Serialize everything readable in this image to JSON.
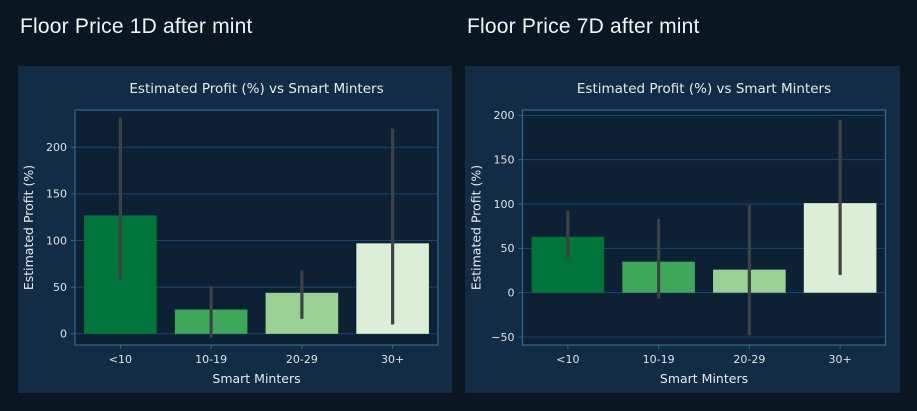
{
  "page": {
    "heading_left": "Floor Price 1D after mint",
    "heading_right": "Floor Price 7D after mint"
  },
  "colors": {
    "page_bg": "#0a1621",
    "figure_bg": "#112c44",
    "plot_bg": "#0c2134",
    "grid": "#1d4768",
    "spine": "#32678f",
    "tick_text": "#dce4ea",
    "title_text": "#e6ebef",
    "error_bar": "#3d4345",
    "heading_text": "#f1f5f8"
  },
  "chart_data": [
    {
      "type": "bar",
      "title": "Estimated Profit (%) vs Smart Minters",
      "xlabel": "Smart Minters",
      "ylabel": "Estimated Profit (%)",
      "categories": [
        "<10",
        "10-19",
        "20-29",
        "30+"
      ],
      "values": [
        127,
        26,
        44,
        97
      ],
      "error_low": [
        58,
        -4,
        16,
        10
      ],
      "error_high": [
        232,
        51,
        68,
        220
      ],
      "yticks": [
        0,
        50,
        100,
        150,
        200
      ],
      "ylim": [
        -12,
        240
      ],
      "bar_colors": [
        "#00753a",
        "#3fa75c",
        "#98d095",
        "#ddeed6"
      ],
      "grid": true,
      "legend": null
    },
    {
      "type": "bar",
      "title": "Estimated Profit (%) vs Smart Minters",
      "xlabel": "Smart Minters",
      "ylabel": "Estimated Profit (%)",
      "categories": [
        "<10",
        "10-19",
        "20-29",
        "30+"
      ],
      "values": [
        63,
        35,
        26,
        101
      ],
      "error_low": [
        39,
        -7,
        -48,
        20
      ],
      "error_high": [
        92,
        83,
        99,
        195
      ],
      "yticks": [
        -50,
        0,
        50,
        100,
        150,
        200
      ],
      "ylim": [
        -59,
        206
      ],
      "bar_colors": [
        "#00753a",
        "#3fa75c",
        "#98d095",
        "#ddeed6"
      ],
      "grid": true,
      "legend": null
    }
  ]
}
